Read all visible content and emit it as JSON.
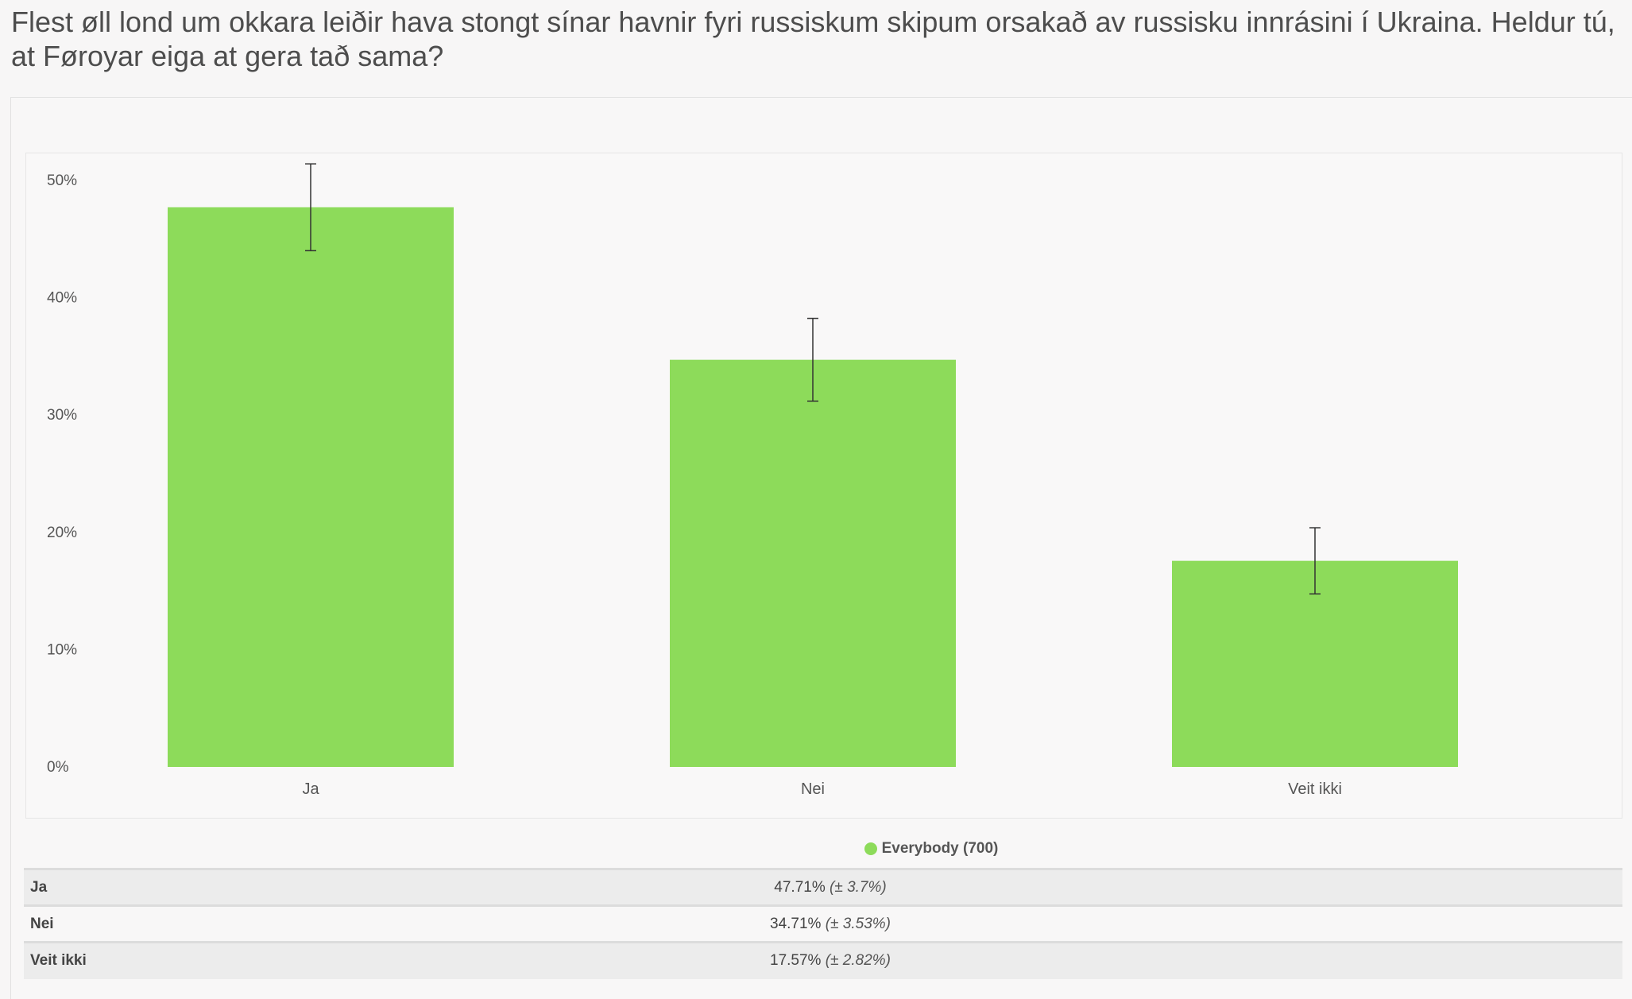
{
  "question": "Flest øll lond um okkara leiðir hava stongt sínar havnir fyri russiskum skipum orsakað av russisku innrásini í Ukraina. Heldur tú, at Føroyar eiga at gera tað sama?",
  "chart_data": {
    "type": "bar",
    "categories": [
      "Ja",
      "Nei",
      "Veit ikki"
    ],
    "series": [
      {
        "name": "Everybody (700)",
        "values": [
          47.71,
          34.71,
          17.57
        ],
        "error": [
          3.7,
          3.53,
          2.82
        ],
        "color": "#8ddb5a"
      }
    ],
    "ylim": [
      0,
      50
    ],
    "yticks": [
      "0%",
      "10%",
      "20%",
      "30%",
      "40%",
      "50%"
    ],
    "grid": false,
    "legend": "bottom"
  },
  "legend": {
    "label": "Everybody (700)",
    "color": "#8ddb5a"
  },
  "table": {
    "rows": [
      {
        "label": "Ja",
        "value": "47.71%",
        "margin": "(± 3.7%)"
      },
      {
        "label": "Nei",
        "value": "34.71%",
        "margin": "(± 3.53%)"
      },
      {
        "label": "Veit ikki",
        "value": "17.57%",
        "margin": "(± 2.82%)"
      }
    ]
  }
}
